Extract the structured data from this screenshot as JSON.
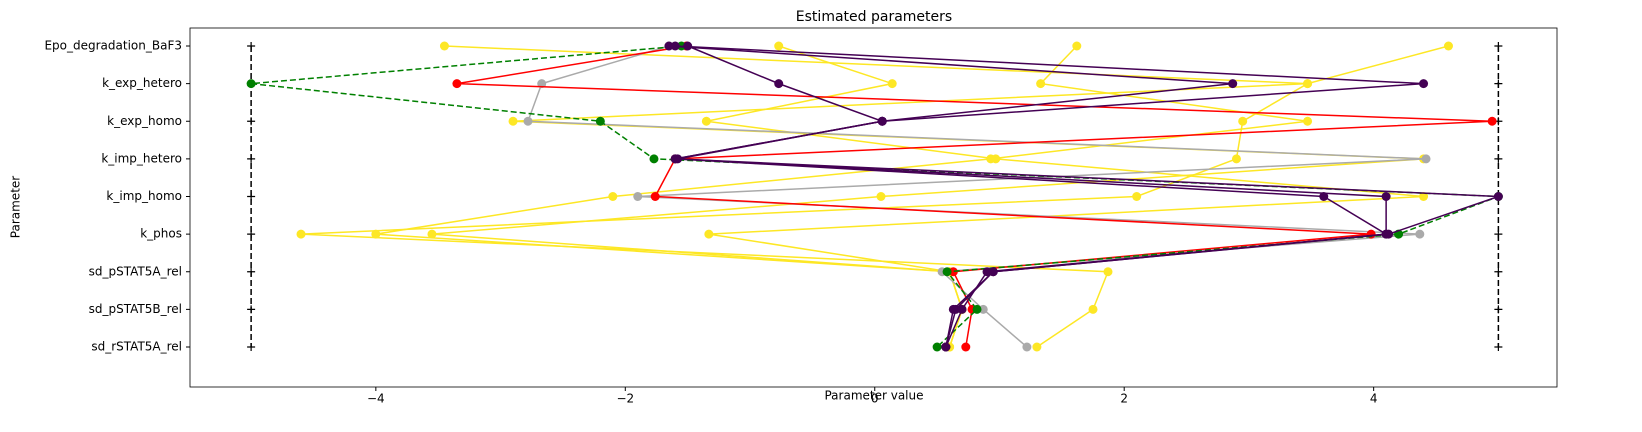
{
  "chart_data": {
    "type": "line",
    "orientation": "horizontal",
    "title": "Estimated parameters",
    "xlabel": "Parameter value",
    "ylabel": "Parameter",
    "categories": [
      "Epo_degradation_BaF3",
      "k_exp_hetero",
      "k_exp_homo",
      "k_imp_hetero",
      "k_imp_homo",
      "k_phos",
      "sd_pSTAT5A_rel",
      "sd_pSTAT5B_rel",
      "sd_rSTAT5A_rel"
    ],
    "xlim": [
      -5.49,
      5.47
    ],
    "xticks": [
      {
        "value": -4,
        "label": "−4"
      },
      {
        "value": -2,
        "label": "−2"
      },
      0,
      2,
      4
    ],
    "bounds": {
      "color": "#000000",
      "lower": [
        -5,
        -5,
        -5,
        -5,
        -5,
        -5,
        -5,
        -5,
        -5
      ],
      "upper": [
        5,
        5,
        5,
        5,
        5,
        5,
        5,
        5,
        5
      ]
    },
    "series": [
      {
        "color": "#fde725",
        "linestyle": "solid",
        "values": [
          -3.45,
          3.47,
          2.95,
          2.9,
          2.1,
          -4.6,
          1.87,
          1.75,
          1.3
        ]
      },
      {
        "color": "#fde725",
        "linestyle": "solid",
        "values": [
          -0.77,
          0.14,
          -1.35,
          0.97,
          4.4,
          -1.33,
          0.6,
          0.7,
          0.6
        ]
      },
      {
        "color": "#fde725",
        "linestyle": "solid",
        "values": [
          1.62,
          1.33,
          3.47,
          0.93,
          -2.1,
          -4.0,
          0.6,
          0.7,
          0.6
        ]
      },
      {
        "color": "#fde725",
        "linestyle": "solid",
        "values": [
          4.6,
          3.47,
          -2.9,
          4.4,
          0.05,
          -3.55,
          0.6,
          0.7,
          0.6
        ]
      },
      {
        "color": "#aaaaaa",
        "linestyle": "solid",
        "values": [
          -1.65,
          -2.67,
          -2.78,
          4.42,
          -1.9,
          4.37,
          0.54,
          0.87,
          1.22
        ]
      },
      {
        "color": "#ff0000",
        "linestyle": "solid",
        "values": [
          -1.51,
          -3.35,
          4.95,
          -1.6,
          -1.76,
          3.98,
          0.63,
          0.78,
          0.73
        ]
      },
      {
        "color": "#008000",
        "linestyle": "dashed",
        "values": [
          -1.55,
          -5,
          -2.2,
          -1.77,
          5,
          4.2,
          0.58,
          0.82,
          0.5
        ]
      },
      {
        "color": "#440154",
        "linestyle": "solid",
        "values": [
          -1.65,
          2.87,
          0.06,
          -1.58,
          4.1,
          4.1,
          0.9,
          0.7,
          0.57
        ]
      },
      {
        "color": "#440154",
        "linestyle": "solid",
        "values": [
          -1.6,
          4.4,
          0.06,
          -1.6,
          3.6,
          4.1,
          0.95,
          0.65,
          0.57
        ]
      },
      {
        "color": "#440154",
        "linestyle": "solid",
        "values": [
          -1.5,
          -0.77,
          0.06,
          -1.6,
          5,
          4.12,
          0.95,
          0.63,
          0.57
        ]
      }
    ]
  }
}
